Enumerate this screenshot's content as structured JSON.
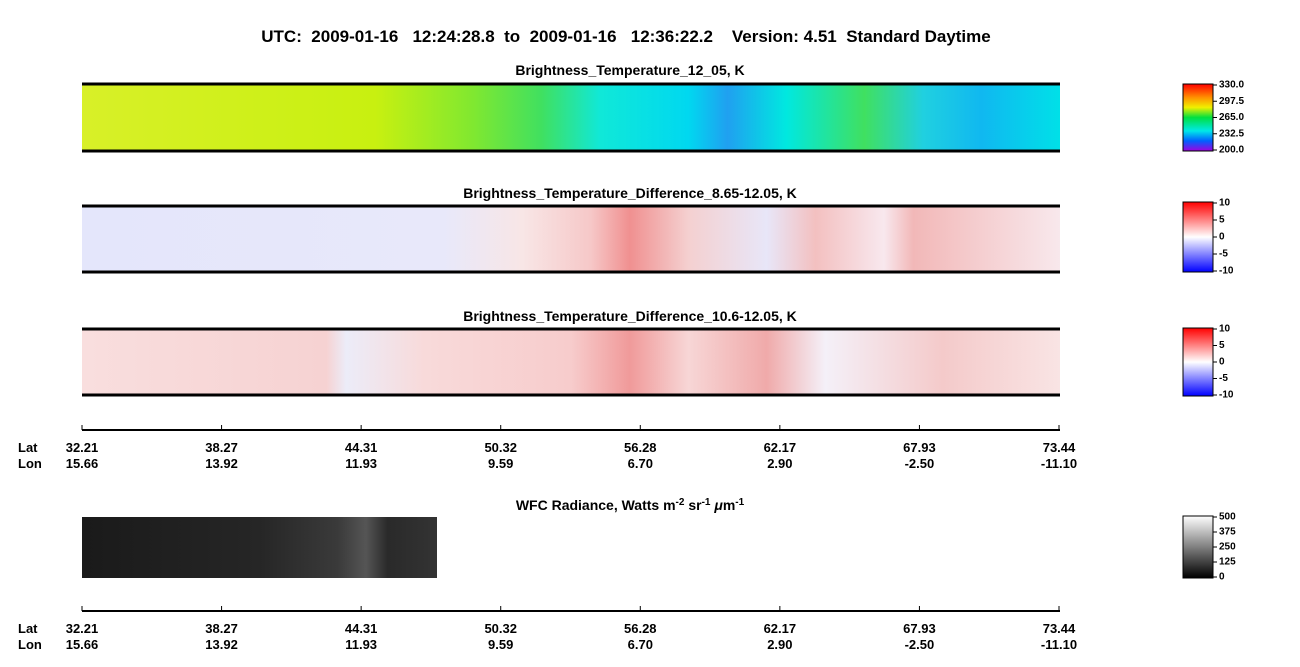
{
  "header": {
    "title": "UTC:  2009-01-16   12:24:28.8  to  2009-01-16   12:36:22.2    Version: 4.51  Standard Daytime"
  },
  "panels": [
    {
      "title": "Brightness_Temperature_12_05, K",
      "colorbar": [
        "330.0",
        "297.5",
        "265.0",
        "232.5",
        "200.0"
      ]
    },
    {
      "title": "Brightness_Temperature_Difference_8.65-12.05, K",
      "colorbar": [
        "10",
        "5",
        "0",
        "-5",
        "-10"
      ]
    },
    {
      "title": "Brightness_Temperature_Difference_10.6-12.05, K",
      "colorbar": [
        "10",
        "5",
        "0",
        "-5",
        "-10"
      ]
    }
  ],
  "axis": {
    "lat_label": "Lat",
    "lon_label": "Lon",
    "lat": [
      "32.21",
      "38.27",
      "44.31",
      "50.32",
      "56.28",
      "62.17",
      "67.93",
      "73.44"
    ],
    "lon": [
      "15.66",
      "13.92",
      "11.93",
      "9.59",
      "6.70",
      "2.90",
      "-2.50",
      "-11.10"
    ]
  },
  "wfc": {
    "title": [
      "WFC Radiance, Watts m",
      "-2",
      " sr",
      "-1",
      " μ",
      "m",
      "-1"
    ],
    "colorbar": [
      "500",
      "375",
      "250",
      "125",
      "0"
    ]
  }
}
